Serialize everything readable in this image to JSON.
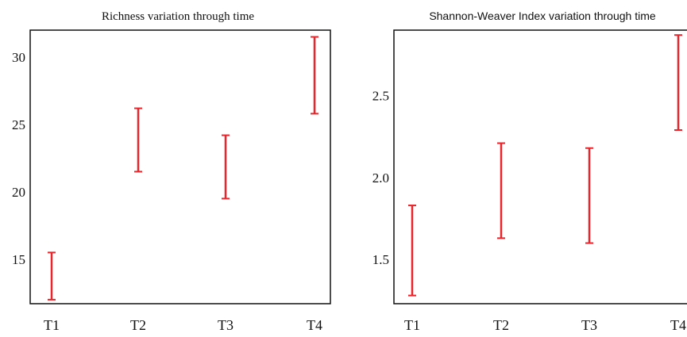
{
  "chart_data": [
    {
      "type": "errorbar",
      "title": "Richness variation through time",
      "xlabel": "",
      "ylabel": "",
      "categories": [
        "T1",
        "T2",
        "T3",
        "T4"
      ],
      "intervals": [
        {
          "category": "T1",
          "low": 12.0,
          "high": 15.5
        },
        {
          "category": "T2",
          "low": 21.5,
          "high": 26.2
        },
        {
          "category": "T3",
          "low": 19.5,
          "high": 24.2
        },
        {
          "category": "T4",
          "low": 25.8,
          "high": 31.5
        }
      ],
      "yticks": [
        15,
        20,
        25,
        30
      ],
      "ylim": [
        11.7,
        32.0
      ],
      "grid": false,
      "color": "#e8262b"
    },
    {
      "type": "errorbar",
      "title": "Shannon-Weaver Index variation through time",
      "xlabel": "",
      "ylabel": "",
      "categories": [
        "T1",
        "T2",
        "T3",
        "T4"
      ],
      "intervals": [
        {
          "category": "T1",
          "low": 1.28,
          "high": 1.83
        },
        {
          "category": "T2",
          "low": 1.63,
          "high": 2.21
        },
        {
          "category": "T3",
          "low": 1.6,
          "high": 2.18
        },
        {
          "category": "T4",
          "low": 2.29,
          "high": 2.87
        }
      ],
      "yticks": [
        1.5,
        2.0,
        2.5
      ],
      "ylim": [
        1.23,
        2.9
      ],
      "grid": false,
      "color": "#e8262b"
    }
  ]
}
